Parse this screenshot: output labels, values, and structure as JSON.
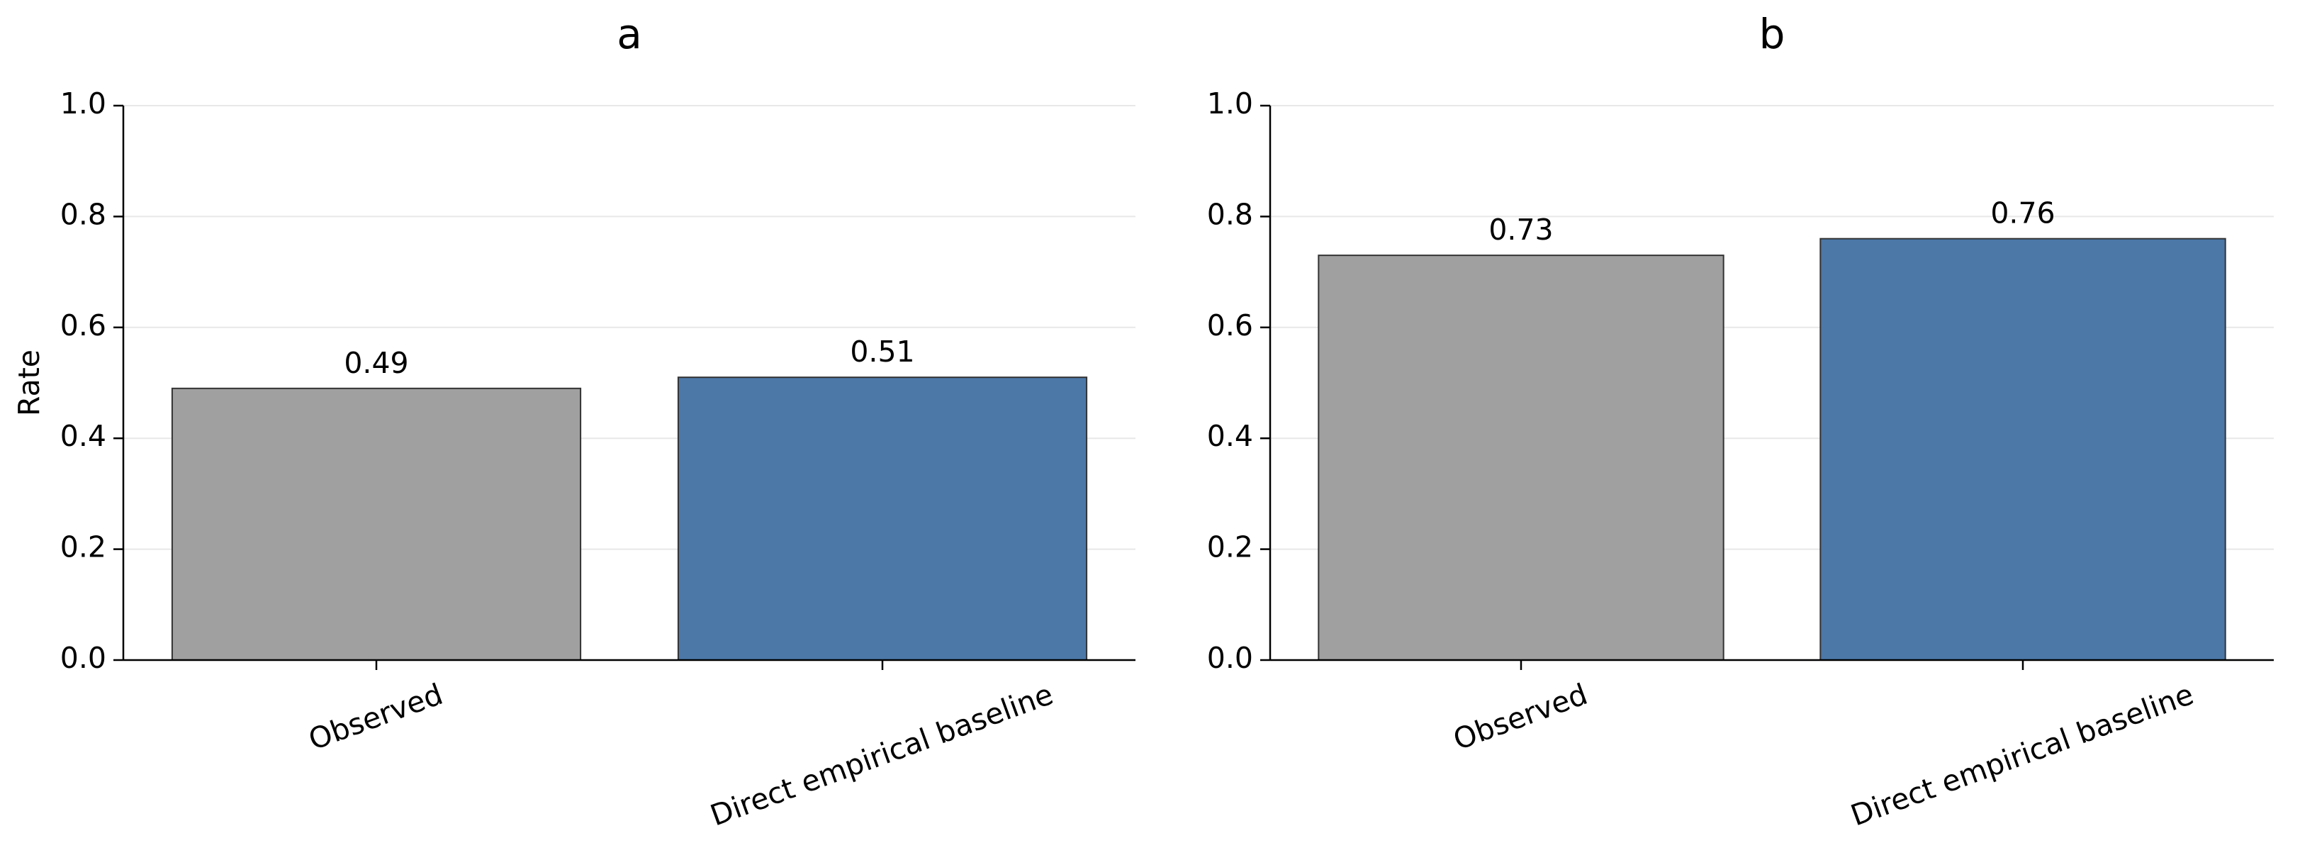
{
  "chart_data": [
    {
      "type": "bar",
      "title": "a",
      "ylabel": "Rate",
      "categories": [
        "Observed",
        "Direct empirical baseline"
      ],
      "values": [
        0.49,
        0.51
      ],
      "colors": [
        "#a0a0a0",
        "#4c78a8"
      ],
      "ylim": [
        0,
        1
      ],
      "yticks": [
        {
          "value": 0,
          "label": "0.0"
        },
        0.2,
        0.4,
        0.6,
        0.8,
        {
          "value": 1,
          "label": "1.0"
        }
      ],
      "grid": true
    },
    {
      "type": "bar",
      "title": "b",
      "categories": [
        "Observed",
        "Direct empirical baseline"
      ],
      "values": [
        0.73,
        0.76
      ],
      "colors": [
        "#a0a0a0",
        "#4c78a8"
      ],
      "ylim": [
        0,
        1
      ],
      "yticks": [
        {
          "value": 0,
          "label": "0.0"
        },
        0.2,
        0.4,
        0.6,
        0.8,
        {
          "value": 1,
          "label": "1.0"
        }
      ],
      "grid": true
    }
  ]
}
